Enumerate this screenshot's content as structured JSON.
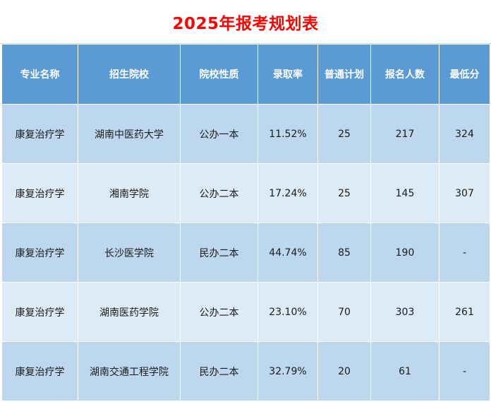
{
  "sheet": {
    "title": "2025年报考规划表"
  },
  "table": {
    "headers": [
      "专业名称",
      "招生院校",
      "院校性质",
      "录取率",
      "普通计划",
      "报名人数",
      "最低分"
    ],
    "rows": [
      [
        "康复治疗学",
        "湖南中医药大学",
        "公办一本",
        "11.52%",
        "25",
        "217",
        "324"
      ],
      [
        "康复治疗学",
        "湘南学院",
        "公办二本",
        "17.24%",
        "25",
        "145",
        "307"
      ],
      [
        "康复治疗学",
        "长沙医学院",
        "民办二本",
        "44.74%",
        "85",
        "190",
        "-"
      ],
      [
        "康复治疗学",
        "湖南医药学院",
        "公办二本",
        "23.10%",
        "70",
        "303",
        "261"
      ],
      [
        "康复治疗学",
        "湖南交通工程学院",
        "民办二本",
        "32.79%",
        "20",
        "61",
        "-"
      ]
    ]
  },
  "colors": {
    "title": "#ff0000",
    "header_bg": "#5b9bd5",
    "row_odd_bg": "#bdd7ee",
    "row_even_bg": "#ddebf7"
  }
}
